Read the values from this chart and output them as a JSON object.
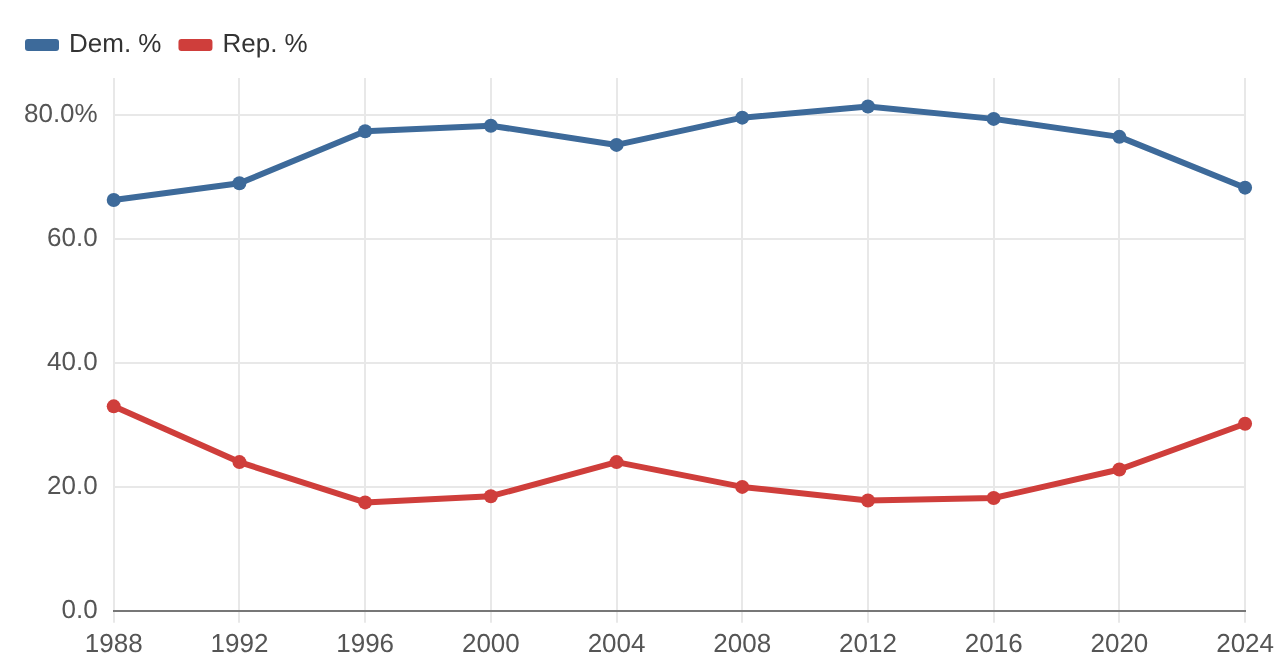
{
  "chart_data": {
    "type": "line",
    "categories": [
      "1988",
      "1992",
      "1996",
      "2000",
      "2004",
      "2008",
      "2012",
      "2016",
      "2020",
      "2024"
    ],
    "series": [
      {
        "name": "Dem. %",
        "color": "#3d6a9a",
        "values": [
          66.3,
          69,
          77.4,
          78.3,
          75.2,
          79.6,
          81.4,
          79.4,
          76.5,
          68.3
        ]
      },
      {
        "name": "Rep. %",
        "color": "#cf3e3b",
        "values": [
          33,
          24,
          17.5,
          18.5,
          24,
          20,
          17.8,
          18.2,
          22.8,
          30.2
        ]
      }
    ],
    "ylim": [
      0,
      86
    ],
    "yticks": [
      {
        "value": 0,
        "label": "0.0"
      },
      {
        "value": 20,
        "label": "20.0"
      },
      {
        "value": 40,
        "label": "40.0"
      },
      {
        "value": 60,
        "label": "60.0"
      },
      {
        "value": 80,
        "label": "80.0%"
      }
    ],
    "grid": true,
    "legend": "top left",
    "marker": "circle",
    "line_style": "solid"
  }
}
